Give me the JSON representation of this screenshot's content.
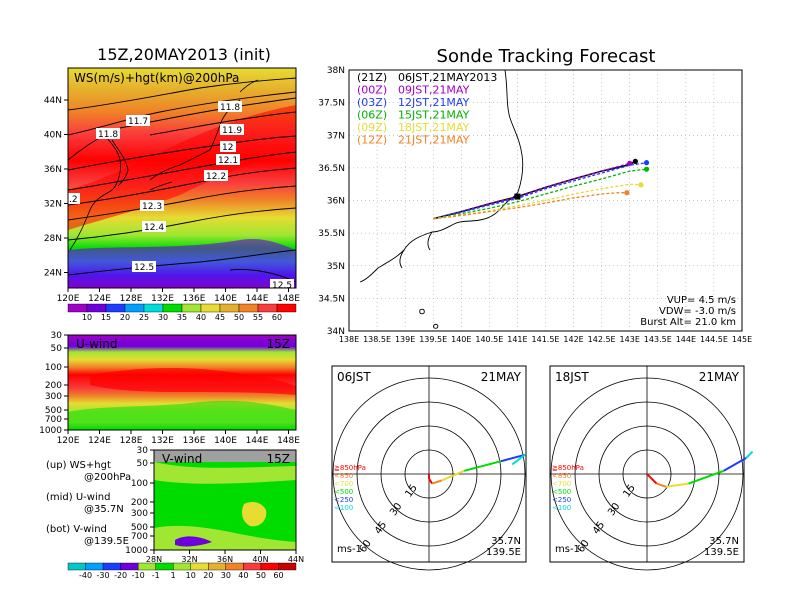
{
  "colors": {
    "ws_bands": [
      "#a000c8",
      "#6e00dc",
      "#1e3cff",
      "#00a0ff",
      "#00dcdc",
      "#00dc00",
      "#a0e632",
      "#e6dc32",
      "#e6af2d",
      "#f08228",
      "#fa3c3c",
      "#ff0000"
    ],
    "diverging_bands": [
      "#00c8c8",
      "#00a0ff",
      "#1e3cff",
      "#6e00dc",
      "#a0e632",
      "#00dc00",
      "#a0e632",
      "#e6dc32",
      "#e6af2d",
      "#f08228",
      "#fa3c3c",
      "#ff0000"
    ],
    "track_21Z": "#000000",
    "track_00Z": "#a000c8",
    "track_03Z": "#1e3cff",
    "track_06Z": "#00b400",
    "track_09Z": "#e6dc32",
    "track_12Z": "#f08228"
  },
  "left": {
    "title": "15Z,20MAY2013 (init)",
    "map": {
      "label": "WS(m/s)+hgt(km)@200hPa",
      "lat_ticks": [
        "44N",
        "40N",
        "36N",
        "32N",
        "28N",
        "24N"
      ],
      "lon_ticks": [
        "120E",
        "124E",
        "128E",
        "132E",
        "136E",
        "140E",
        "144E",
        "148E"
      ],
      "contours": [
        "11.8",
        "11.7",
        "11.8",
        "11.9",
        "12",
        "12.1",
        "12.2",
        "12.3",
        "12.4",
        "12.5",
        "12.5",
        ".2"
      ]
    },
    "ws_colorbar": [
      "10",
      "15",
      "20",
      "25",
      "30",
      "35",
      "40",
      "45",
      "50",
      "55",
      "60"
    ],
    "uwind": {
      "label": "U-wind",
      "time": "15Z",
      "p_ticks": [
        "30",
        "50",
        "100",
        "200",
        "300",
        "500",
        "700",
        "1000"
      ],
      "lon_ticks": [
        "120E",
        "124E",
        "128E",
        "132E",
        "136E",
        "140E",
        "144E",
        "148E"
      ]
    },
    "vwind": {
      "label": "V-wind",
      "time": "15Z",
      "p_ticks": [
        "30",
        "50",
        "100",
        "200",
        "300",
        "500",
        "700",
        "1000"
      ],
      "lat_ticks": [
        "28N",
        "32N",
        "36N",
        "40N",
        "44N"
      ]
    },
    "legend": [
      {
        "l1": "(up) WS+hgt",
        "l2": "@200hPa"
      },
      {
        "l1": "(mid) U-wind",
        "l2": "@35.7N"
      },
      {
        "l1": "(bot) V-wind",
        "l2": "@139.5E"
      }
    ],
    "div_colorbar": [
      "-40",
      "-30",
      "-20",
      "-10",
      "-1",
      "1",
      "10",
      "20",
      "30",
      "40",
      "50",
      "60"
    ]
  },
  "right": {
    "title": "Sonde Tracking Forecast",
    "lat_ticks": [
      "38N",
      "37.5N",
      "37N",
      "36.5N",
      "36N",
      "35.5N",
      "35N",
      "34.5N",
      "34N"
    ],
    "lon_ticks": [
      "138E",
      "138.5E",
      "139E",
      "139.5E",
      "140E",
      "140.5E",
      "141E",
      "141.5E",
      "142E",
      "142.5E",
      "143E",
      "143.5E",
      "144E",
      "144.5E",
      "145E"
    ],
    "legend": [
      {
        "key": "(21Z)",
        "text": "06JST,21MAY2013",
        "color": "track_21Z"
      },
      {
        "key": "(00Z)",
        "text": "09JST,21MAY",
        "color": "track_00Z"
      },
      {
        "key": "(03Z)",
        "text": "12JST,21MAY",
        "color": "track_03Z"
      },
      {
        "key": "(06Z)",
        "text": "15JST,21MAY",
        "color": "track_06Z"
      },
      {
        "key": "(09Z)",
        "text": "18JST,21MAY",
        "color": "track_09Z"
      },
      {
        "key": "(12Z)",
        "text": "21JST,21MAY",
        "color": "track_12Z"
      }
    ],
    "params": [
      "VUP= 4.5 m/s",
      "VDW= -3.0 m/s",
      "Burst Alt= 21.0 km"
    ]
  },
  "chart_data": [
    {
      "type": "line",
      "title": "Sonde Tracking Forecast",
      "xlabel": "",
      "ylabel": "",
      "xlim": [
        138,
        145
      ],
      "ylim": [
        34,
        38
      ],
      "series": [
        {
          "name": "(21Z) 06JST,21MAY2013",
          "x": [
            139.5,
            140.0,
            140.5,
            141.0,
            141.5,
            142.0,
            142.5,
            143.0,
            143.1
          ],
          "y": [
            35.72,
            35.83,
            35.95,
            36.06,
            36.2,
            36.33,
            36.45,
            36.55,
            36.6
          ]
        },
        {
          "name": "(00Z) 09JST,21MAY",
          "x": [
            139.5,
            140.0,
            140.5,
            141.0,
            141.5,
            142.0,
            142.5,
            143.0
          ],
          "y": [
            35.72,
            35.83,
            35.95,
            36.05,
            36.2,
            36.33,
            36.45,
            36.57
          ]
        },
        {
          "name": "(03Z) 12JST,21MAY",
          "x": [
            139.5,
            140.0,
            140.5,
            141.0,
            141.5,
            142.0,
            142.5,
            143.0,
            143.3
          ],
          "y": [
            35.72,
            35.82,
            35.93,
            36.03,
            36.18,
            36.3,
            36.42,
            36.54,
            36.58
          ]
        },
        {
          "name": "(06Z) 15JST,21MAY",
          "x": [
            139.5,
            140.0,
            140.5,
            141.0,
            141.5,
            142.0,
            142.5,
            143.0,
            143.3
          ],
          "y": [
            35.72,
            35.8,
            35.88,
            35.98,
            36.1,
            36.22,
            36.33,
            36.45,
            36.48
          ]
        },
        {
          "name": "(09Z) 18JST,21MAY",
          "x": [
            139.5,
            140.0,
            140.5,
            141.0,
            141.5,
            142.0,
            142.5,
            143.0,
            143.2
          ],
          "y": [
            35.72,
            35.78,
            35.84,
            35.92,
            36.0,
            36.1,
            36.18,
            36.25,
            36.24
          ]
        },
        {
          "name": "(12Z) 21JST,21MAY",
          "x": [
            139.5,
            140.0,
            140.5,
            141.0,
            141.5,
            142.0,
            142.5,
            142.8,
            142.95
          ],
          "y": [
            35.72,
            35.77,
            35.83,
            35.89,
            35.96,
            36.04,
            36.1,
            36.12,
            36.12
          ]
        }
      ]
    }
  ],
  "hodographs": [
    {
      "title": "06JST",
      "date": "21MAY",
      "lat": "35.7N",
      "lon": "139.5E",
      "unit": "ms-1",
      "ring_labels": [
        "15",
        "30",
        "45",
        "60"
      ],
      "pressure_legend": [
        "≧850hPa",
        "<850",
        "<700",
        "<500",
        "<250",
        "<100"
      ],
      "colors": [
        "#ff0000",
        "#f08228",
        "#e6dc32",
        "#00dc00",
        "#1e3cff",
        "#00dcdc"
      ],
      "u": [
        0,
        0,
        2,
        8,
        22,
        45,
        60,
        52
      ],
      "v": [
        0,
        -3,
        -6,
        -4,
        2,
        8,
        12,
        6
      ]
    },
    {
      "title": "18JST",
      "date": "21MAY",
      "lat": "35.7N",
      "lon": "139.5E",
      "unit": "ms-1",
      "ring_labels": [
        "15",
        "30",
        "45",
        "60"
      ],
      "pressure_legend": [
        "≧850hPa",
        "<850",
        "<700",
        "<500",
        "<250",
        "<100"
      ],
      "colors": [
        "#ff0000",
        "#f08228",
        "#e6dc32",
        "#00dc00",
        "#1e3cff",
        "#00dcdc"
      ],
      "u": [
        0,
        2,
        6,
        12,
        26,
        48,
        62,
        66
      ],
      "v": [
        0,
        -2,
        -6,
        -8,
        -6,
        2,
        10,
        14
      ]
    }
  ]
}
